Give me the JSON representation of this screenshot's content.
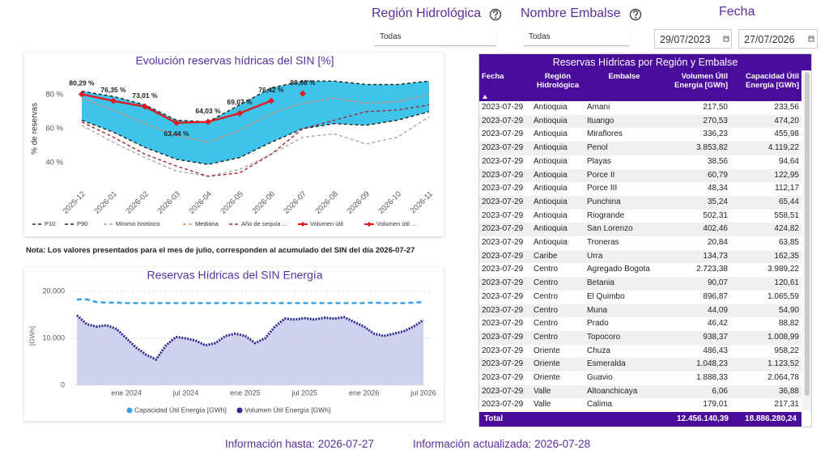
{
  "filters": [
    {
      "label": "Región Hidrológica",
      "value": "Todas"
    },
    {
      "label": "Nombre Embalse",
      "value": "Todas"
    }
  ],
  "date_filter": {
    "label": "Fecha",
    "start": "29/07/2023",
    "end": "27/07/2026"
  },
  "chart_data": [
    {
      "type": "line",
      "title": "Evolución reservas hídricas del SIN [%]",
      "y_label": "% de reservas",
      "categories": [
        "2025-12",
        "2026-01",
        "2026-02",
        "2026-03",
        "2026-04",
        "2026-05",
        "2026-06",
        "2026-07",
        "2026-08",
        "2026-09",
        "2026-10",
        "2026-11"
      ],
      "ylim": [
        28,
        92
      ],
      "yticks": [
        {
          "value": 40,
          "label": "40 %"
        },
        {
          "value": 60,
          "label": "60 %"
        },
        {
          "value": 80,
          "label": "80 %"
        }
      ],
      "band_color": "#3ec4ea",
      "series": [
        {
          "name": "P10",
          "color": "#222222",
          "style": "dashed",
          "values": [
            65,
            58,
            49,
            42,
            39,
            43,
            52,
            60,
            63,
            62,
            65,
            70
          ]
        },
        {
          "name": "P90",
          "color": "#222222",
          "style": "dashed",
          "values": [
            82,
            79,
            74,
            65,
            64,
            74,
            84,
            88,
            88,
            86,
            86,
            88
          ]
        },
        {
          "name": "Mínimo histórico",
          "color": "#a8a8a8",
          "style": "dashed",
          "values": [
            62,
            52,
            43,
            35,
            32,
            36,
            45,
            55,
            57,
            51,
            55,
            67
          ]
        },
        {
          "name": "Mediana",
          "color": "#e8826a",
          "style": "dashed",
          "values": [
            78,
            71,
            63,
            56,
            52,
            59,
            69,
            75,
            78,
            75,
            76,
            80
          ]
        },
        {
          "name": "Año de sequía ...",
          "color": "#a3282e",
          "style": "dashed",
          "values": [
            64,
            55,
            45,
            38,
            32,
            34,
            45,
            60,
            65,
            70,
            71,
            74
          ]
        },
        {
          "name": "Volumen útil",
          "color": "#e01b22",
          "style": "solid",
          "marker": "diamond",
          "values": [
            80.29,
            76.35,
            73.01,
            63.44,
            64.03,
            69.07,
            76.42,
            null,
            null,
            null,
            null,
            null
          ],
          "value_labels": [
            "80,29 %",
            "76,35 %",
            "73,01 %",
            "63,44 %",
            "64,03 %",
            "69,07 %",
            "76,42 %",
            null,
            null,
            null,
            null,
            null
          ]
        },
        {
          "name": "Volumen útil ...",
          "color": "#e01b22",
          "style": "solid",
          "marker": "diamond",
          "values": [
            null,
            null,
            null,
            null,
            null,
            null,
            null,
            80.66,
            null,
            null,
            null,
            null
          ],
          "value_labels": [
            null,
            null,
            null,
            null,
            null,
            null,
            null,
            "80,66 %",
            null,
            null,
            null,
            null
          ]
        }
      ]
    },
    {
      "type": "area",
      "title": "Reservas Hídricas del SIN Energía",
      "y_label": "[GWh]",
      "x": [
        "2023-08",
        "2023-09",
        "2023-10",
        "2023-11",
        "2023-12",
        "2024-01",
        "2024-02",
        "2024-03",
        "2024-04",
        "2024-05",
        "2024-06",
        "2024-07",
        "2024-08",
        "2024-09",
        "2024-10",
        "2024-11",
        "2024-12",
        "2025-01",
        "2025-02",
        "2025-03",
        "2025-04",
        "2025-05",
        "2025-06",
        "2025-07",
        "2025-08",
        "2025-09",
        "2025-10",
        "2025-11",
        "2025-12",
        "2026-01",
        "2026-02",
        "2026-03",
        "2026-04",
        "2026-05",
        "2026-06",
        "2026-07"
      ],
      "xticks": [
        {
          "value": "2024-01",
          "label": "ene 2024"
        },
        {
          "value": "2024-07",
          "label": "jul 2024"
        },
        {
          "value": "2025-01",
          "label": "ene 2025"
        },
        {
          "value": "2025-07",
          "label": "jul 2025"
        },
        {
          "value": "2026-01",
          "label": "ene 2026"
        },
        {
          "value": "2026-07",
          "label": "jul 2026"
        }
      ],
      "ylim": [
        0,
        21000
      ],
      "yticks": [
        0,
        {
          "value": 10000,
          "label": "10.000"
        },
        {
          "value": 20000,
          "label": "20.000"
        }
      ],
      "grid": true,
      "series": [
        {
          "name": "Capacidad Útil Energía [GWh]",
          "color": "#3ba2ea",
          "style": "dashed",
          "values": [
            18300,
            18300,
            17700,
            17600,
            17600,
            17500,
            17500,
            17500,
            17500,
            17500,
            17500,
            17500,
            17500,
            17500,
            17500,
            17500,
            17500,
            17500,
            17500,
            17500,
            17500,
            17500,
            17500,
            17500,
            17500,
            17500,
            17500,
            17500,
            17500,
            17500,
            17600,
            17500,
            17500,
            17500,
            17600,
            17700
          ]
        },
        {
          "name": "Volumen Útil Energía [GWh]",
          "color": "#2e2a8f",
          "style": "dotted",
          "fill": "#cfd1ee",
          "values": [
            14900,
            13000,
            12500,
            12800,
            12000,
            10000,
            8000,
            6500,
            5500,
            8500,
            10300,
            10000,
            9500,
            8500,
            9000,
            10500,
            11000,
            10500,
            9000,
            10000,
            12500,
            14200,
            14000,
            14300,
            14000,
            14400,
            14200,
            14500,
            13500,
            12500,
            11000,
            10500,
            11000,
            11500,
            12500,
            13900
          ]
        }
      ]
    }
  ],
  "note": "Nota: Los valores presentados para el mes de julio, corresponden al acumulado del SIN del día 2026-07-27",
  "table": {
    "title": "Reservas Hídricas por Región y Embalse",
    "columns": [
      "Fecha",
      "Región Hidrológica",
      "Embalse",
      "Volumen Útil Energía [GWh]",
      "Capacidad Útil Energía [GWh]"
    ],
    "rows": [
      [
        "2023-07-29",
        "Antioquia",
        "Amani",
        "217,50",
        "233,56"
      ],
      [
        "2023-07-29",
        "Antioquia",
        "Ituango",
        "270,53",
        "474,20"
      ],
      [
        "2023-07-29",
        "Antioquia",
        "Miraflores",
        "336,23",
        "455,98"
      ],
      [
        "2023-07-29",
        "Antioquia",
        "Penol",
        "3.853,82",
        "4.119,22"
      ],
      [
        "2023-07-29",
        "Antioquia",
        "Playas",
        "38,56",
        "94,64"
      ],
      [
        "2023-07-29",
        "Antioquia",
        "Porce II",
        "60,79",
        "122,95"
      ],
      [
        "2023-07-29",
        "Antioquia",
        "Porce III",
        "48,34",
        "112,17"
      ],
      [
        "2023-07-29",
        "Antioquia",
        "Punchina",
        "35,24",
        "65,44"
      ],
      [
        "2023-07-29",
        "Antioquia",
        "Riogrande",
        "502,31",
        "558,51"
      ],
      [
        "2023-07-29",
        "Antioquia",
        "San Lorenzo",
        "402,46",
        "424,82"
      ],
      [
        "2023-07-29",
        "Antioquia",
        "Troneras",
        "20,84",
        "63,85"
      ],
      [
        "2023-07-29",
        "Caribe",
        "Urra",
        "134,73",
        "162,35"
      ],
      [
        "2023-07-29",
        "Centro",
        "Agregado Bogota",
        "2.723,38",
        "3.989,22"
      ],
      [
        "2023-07-29",
        "Centro",
        "Betania",
        "90,07",
        "120,61"
      ],
      [
        "2023-07-29",
        "Centro",
        "El Quimbo",
        "896,87",
        "1.065,59"
      ],
      [
        "2023-07-29",
        "Centro",
        "Muna",
        "44,09",
        "54,90"
      ],
      [
        "2023-07-29",
        "Centro",
        "Prado",
        "46,42",
        "88,82"
      ],
      [
        "2023-07-29",
        "Centro",
        "Topocoro",
        "938,37",
        "1.008,99"
      ],
      [
        "2023-07-29",
        "Oriente",
        "Chuza",
        "486,43",
        "958,22"
      ],
      [
        "2023-07-29",
        "Oriente",
        "Esmeralda",
        "1.048,23",
        "1.123,52"
      ],
      [
        "2023-07-29",
        "Oriente",
        "Guavio",
        "1.888,33",
        "2.064,78"
      ],
      [
        "2023-07-29",
        "Valle",
        "Altoanchicaya",
        "6,06",
        "36,88"
      ],
      [
        "2023-07-29",
        "Valle",
        "Calima",
        "179,01",
        "217,31"
      ]
    ],
    "total": {
      "label": "Total",
      "values": [
        "12.456.140,39",
        "18.886.280,24"
      ]
    }
  },
  "footer": {
    "data_until": "Información hasta: 2026-07-27",
    "updated": "Información actualizada: 2026-07-28"
  }
}
